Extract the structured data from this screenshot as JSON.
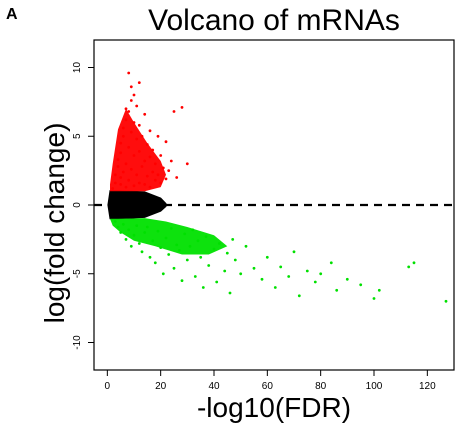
{
  "panel_label": "A",
  "chart_data": {
    "type": "scatter",
    "title": "Volcano of mRNAs",
    "xlabel": "-log10(FDR)",
    "ylabel": "log(fold change)",
    "xlim": [
      -5,
      130
    ],
    "ylim": [
      -12,
      12
    ],
    "x_ticks": [
      0,
      20,
      40,
      60,
      80,
      100,
      120
    ],
    "y_ticks": [
      -10,
      -5,
      0,
      5,
      10
    ],
    "reference_line": {
      "y": 0,
      "style": "dashed",
      "color": "#000000"
    },
    "grid": false,
    "legend": "none",
    "colors": {
      "up": "#ff0000",
      "down": "#00e000",
      "not_significant": "#000000"
    },
    "series": [
      {
        "key": "up",
        "color": "#ff0000",
        "points": [
          [
            2,
            1.2
          ],
          [
            3,
            1.6
          ],
          [
            3,
            2.2
          ],
          [
            4,
            2.8
          ],
          [
            4,
            3.3
          ],
          [
            5,
            1.5
          ],
          [
            5,
            2.0
          ],
          [
            5,
            3.8
          ],
          [
            5,
            4.5
          ],
          [
            6,
            2.4
          ],
          [
            6,
            5.0
          ],
          [
            6,
            5.6
          ],
          [
            7,
            1.3
          ],
          [
            7,
            3.0
          ],
          [
            7,
            6.2
          ],
          [
            7,
            7.0
          ],
          [
            8,
            1.8
          ],
          [
            8,
            4.2
          ],
          [
            8,
            6.8
          ],
          [
            8,
            9.6
          ],
          [
            9,
            2.6
          ],
          [
            9,
            5.3
          ],
          [
            9,
            7.6
          ],
          [
            9,
            8.6
          ],
          [
            10,
            1.4
          ],
          [
            10,
            3.6
          ],
          [
            10,
            6.0
          ],
          [
            10,
            8.0
          ],
          [
            11,
            2.2
          ],
          [
            11,
            4.8
          ],
          [
            11,
            7.2
          ],
          [
            12,
            1.6
          ],
          [
            12,
            3.9
          ],
          [
            12,
            5.8
          ],
          [
            12,
            8.9
          ],
          [
            13,
            2.8
          ],
          [
            13,
            5.0
          ],
          [
            14,
            1.5
          ],
          [
            14,
            3.2
          ],
          [
            14,
            6.6
          ],
          [
            15,
            2.1
          ],
          [
            15,
            4.4
          ],
          [
            16,
            1.3
          ],
          [
            16,
            3.5
          ],
          [
            16,
            5.4
          ],
          [
            17,
            2.4
          ],
          [
            17,
            4.0
          ],
          [
            18,
            1.8
          ],
          [
            18,
            3.0
          ],
          [
            19,
            2.2
          ],
          [
            19,
            5.0
          ],
          [
            20,
            1.6
          ],
          [
            20,
            3.6
          ],
          [
            21,
            2.7
          ],
          [
            22,
            1.9
          ],
          [
            22,
            4.6
          ],
          [
            23,
            2.5
          ],
          [
            24,
            3.2
          ],
          [
            25,
            6.8
          ],
          [
            26,
            2.0
          ],
          [
            28,
            7.1
          ],
          [
            30,
            3.0
          ]
        ]
      },
      {
        "key": "down",
        "color": "#00e000",
        "points": [
          [
            3,
            -1.2
          ],
          [
            4,
            -1.6
          ],
          [
            5,
            -2.0
          ],
          [
            6,
            -1.4
          ],
          [
            7,
            -2.5
          ],
          [
            8,
            -1.8
          ],
          [
            9,
            -3.0
          ],
          [
            10,
            -2.2
          ],
          [
            11,
            -1.5
          ],
          [
            12,
            -2.8
          ],
          [
            13,
            -3.4
          ],
          [
            14,
            -2.0
          ],
          [
            15,
            -1.6
          ],
          [
            16,
            -3.8
          ],
          [
            17,
            -2.6
          ],
          [
            18,
            -4.2
          ],
          [
            19,
            -1.9
          ],
          [
            20,
            -3.1
          ],
          [
            21,
            -5.0
          ],
          [
            22,
            -2.4
          ],
          [
            23,
            -3.6
          ],
          [
            24,
            -1.7
          ],
          [
            25,
            -4.6
          ],
          [
            26,
            -2.9
          ],
          [
            27,
            -3.3
          ],
          [
            28,
            -5.5
          ],
          [
            29,
            -2.1
          ],
          [
            30,
            -4.0
          ],
          [
            31,
            -3.0
          ],
          [
            32,
            -1.8
          ],
          [
            33,
            -5.2
          ],
          [
            34,
            -2.6
          ],
          [
            35,
            -3.8
          ],
          [
            36,
            -6.0
          ],
          [
            37,
            -2.3
          ],
          [
            38,
            -4.4
          ],
          [
            40,
            -3.2
          ],
          [
            41,
            -5.6
          ],
          [
            42,
            -2.8
          ],
          [
            44,
            -4.8
          ],
          [
            45,
            -3.5
          ],
          [
            46,
            -6.4
          ],
          [
            47,
            -2.5
          ],
          [
            48,
            -4.0
          ],
          [
            50,
            -5.0
          ],
          [
            52,
            -3.0
          ],
          [
            55,
            -4.6
          ],
          [
            58,
            -5.4
          ],
          [
            60,
            -3.8
          ],
          [
            63,
            -6.0
          ],
          [
            65,
            -4.5
          ],
          [
            68,
            -5.2
          ],
          [
            70,
            -3.4
          ],
          [
            72,
            -6.6
          ],
          [
            75,
            -4.8
          ],
          [
            78,
            -5.6
          ],
          [
            80,
            -5.0
          ],
          [
            84,
            -4.2
          ],
          [
            86,
            -6.2
          ],
          [
            90,
            -5.4
          ],
          [
            95,
            -5.8
          ],
          [
            100,
            -6.8
          ],
          [
            102,
            -6.2
          ],
          [
            113,
            -4.5
          ],
          [
            115,
            -4.2
          ],
          [
            127,
            -7.0
          ]
        ]
      }
    ]
  }
}
